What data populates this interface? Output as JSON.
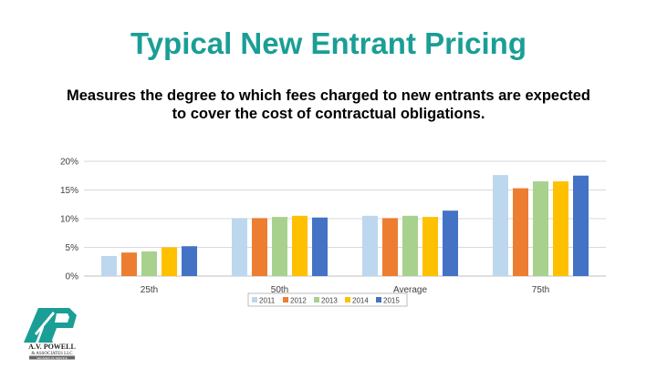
{
  "slide": {
    "title": "Typical New Entrant Pricing",
    "subtitle": "Measures the degree to which fees charged to new entrants are expected to cover the cost of contractual obligations."
  },
  "logo": {
    "name": "A.V. POWELL",
    "subname": "& ASSOCIATES LLC",
    "tagline": "DECADES OF SERVICE"
  },
  "chart_data": {
    "type": "bar",
    "categories": [
      "25th",
      "50th",
      "Average",
      "75th"
    ],
    "series": [
      {
        "name": "2011",
        "color": "#bdd7ee",
        "values": [
          3.5,
          10.1,
          10.5,
          17.6
        ]
      },
      {
        "name": "2012",
        "color": "#ed7d31",
        "values": [
          4.1,
          10.1,
          10.1,
          15.3
        ]
      },
      {
        "name": "2013",
        "color": "#a9d18e",
        "values": [
          4.3,
          10.3,
          10.5,
          16.5
        ]
      },
      {
        "name": "2014",
        "color": "#ffc000",
        "values": [
          5.0,
          10.5,
          10.3,
          16.5
        ]
      },
      {
        "name": "2015",
        "color": "#4472c4",
        "values": [
          5.2,
          10.2,
          11.4,
          17.5
        ]
      }
    ],
    "ylim": [
      0,
      20
    ],
    "yticks": [
      0,
      5,
      10,
      15,
      20
    ],
    "ytick_format": "percent",
    "grid": true,
    "legend": "bottom"
  }
}
